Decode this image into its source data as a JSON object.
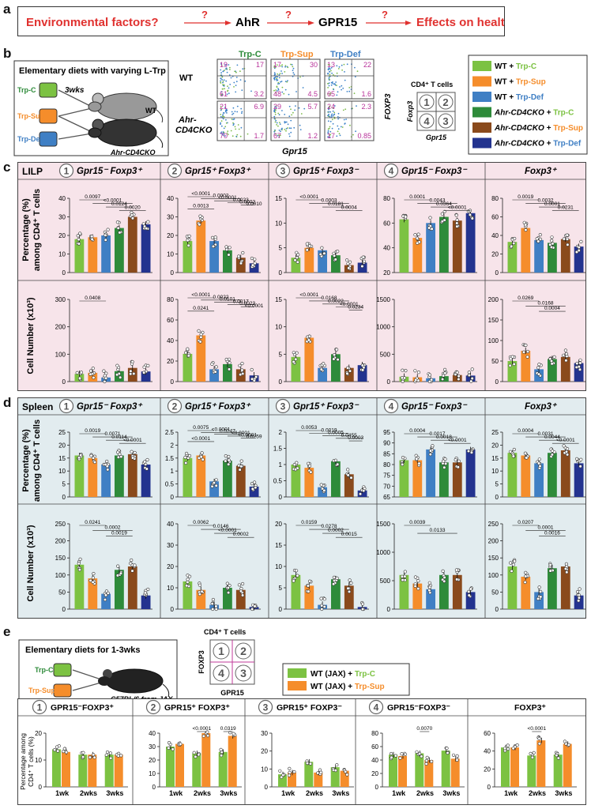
{
  "panels": {
    "a": "a",
    "b": "b",
    "c": "c",
    "d": "d",
    "e": "e"
  },
  "colors": {
    "trpC": "#7cc242",
    "trpSup": "#f58d2b",
    "trpDef": "#3f7fc4",
    "cko_C": "#2e8b3a",
    "cko_Sup": "#8a4a1c",
    "cko_Def": "#23338f",
    "red": "#e0312f",
    "pinkBg": "#f7e4ea",
    "blueBg": "#e2ecef"
  },
  "pathway": [
    "Environmental factors?",
    "AhR",
    "GPR15",
    "Effects on health?"
  ],
  "pathway_q": "?",
  "b": {
    "diet_title": "Elementary diets with varying L-Trp",
    "diets": [
      "Trp-C",
      "Trp-Sup",
      "Trp-Def"
    ],
    "duration": "3wks",
    "mice": [
      "WT",
      "Ahr-CD4CKO"
    ],
    "flow_cols": [
      "Trp-C",
      "Trp-Sup",
      "Trp-Def"
    ],
    "flow_rows": [
      "WT",
      "Ahr-CD4CKO"
    ],
    "flow_rows_l2": [
      "",
      "CD4CKO"
    ],
    "flow_rows_l1": [
      "WT",
      "Ahr-"
    ],
    "flow_numbers": [
      [
        [
          "19",
          "17",
          "61",
          "3.2"
        ],
        [
          "17",
          "30",
          "48",
          "4.5"
        ],
        [
          "13",
          "22",
          "65",
          "1.6"
        ]
      ],
      [
        [
          "21",
          "6.9",
          "70",
          "1.7"
        ],
        [
          "29",
          "5.7",
          "67",
          "1.2"
        ],
        [
          "24",
          "2.3",
          "17",
          "0.85"
        ]
      ]
    ],
    "flow_y": "FOXP3",
    "flow_x": "Gpr15",
    "quad_title": "CD4⁺ T cells",
    "quad_y": "Foxp3",
    "quad_x": "Gpr15",
    "quad_nums": [
      "1",
      "2",
      "4",
      "3"
    ],
    "legend": [
      {
        "a": "WT + ",
        "b": "Trp-C"
      },
      {
        "a": "WT + ",
        "b": "Trp-Sup"
      },
      {
        "a": "WT + ",
        "b": "Trp-Def"
      },
      {
        "a": "Ahr-CD4CKO + ",
        "b": "Trp-C"
      },
      {
        "a": "Ahr-CD4CKO + ",
        "b": "Trp-Sup"
      },
      {
        "a": "Ahr-CD4CKO + ",
        "b": "Trp-Def"
      }
    ]
  },
  "c": {
    "tissue": "LILP",
    "headers": [
      {
        "n": "1",
        "t": "Gpr15⁻ Foxp3⁺"
      },
      {
        "n": "2",
        "t": "Gpr15⁺ Foxp3⁺"
      },
      {
        "n": "3",
        "t": "Gpr15⁺ Foxp3⁻"
      },
      {
        "n": "4",
        "t": "Gpr15⁻ Foxp3⁻"
      },
      {
        "n": "",
        "t": "Foxp3⁺"
      }
    ],
    "ylab_pct": [
      "Percentage (%)",
      "among CD4⁺ T cells"
    ],
    "ylab_num": "Cell Number (x10³)"
  },
  "d": {
    "tissue": "Spleen",
    "headers": [
      {
        "n": "1",
        "t": "Gpr15⁻ Foxp3⁺"
      },
      {
        "n": "2",
        "t": "Gpr15⁺ Foxp3⁺"
      },
      {
        "n": "3",
        "t": "Gpr15⁺ Foxp3⁻"
      },
      {
        "n": "4",
        "t": "Gpr15⁻ Foxp3⁻"
      },
      {
        "n": "",
        "t": "Foxp3⁺"
      }
    ]
  },
  "e": {
    "diet_title": "Elementary diets for 1-3wks",
    "diets": [
      "Trp-C",
      "Trp-Sup"
    ],
    "mouse": "C57BL/6 from JAX",
    "quad_title": "CD4⁺ T cells",
    "quad_y": "FOXP3",
    "quad_x": "GPR15",
    "legend": [
      {
        "a": "WT (JAX) + ",
        "b": "Trp-C"
      },
      {
        "a": "WT (JAX) + ",
        "b": "Trp-Sup"
      }
    ],
    "headers": [
      {
        "n": "1",
        "t": "GPR15⁻FOXP3⁺"
      },
      {
        "n": "2",
        "t": "GPR15⁺ FOXP3⁺"
      },
      {
        "n": "3",
        "t": "GPR15⁺ FOXP3⁻"
      },
      {
        "n": "4",
        "t": "GPR15⁻FOXP3⁻"
      },
      {
        "n": "",
        "t": "FOXP3⁺"
      }
    ],
    "ylab": [
      "Percentage among",
      "CD4⁺ T cells (%)"
    ],
    "weeks": [
      "1wk",
      "2wks",
      "3wks"
    ]
  },
  "chart_data": [
    {
      "type": "bar",
      "panel": "c-pct-1",
      "yticks": [
        0,
        10,
        20,
        30,
        40
      ],
      "ylim": [
        0,
        40
      ],
      "values": [
        18,
        19,
        20,
        24,
        30,
        26
      ],
      "pvalues": [
        "0.0097",
        "<0.0001",
        "0.0124",
        "0.0020"
      ]
    },
    {
      "type": "bar",
      "panel": "c-pct-2",
      "yticks": [
        0,
        10,
        20,
        30,
        40
      ],
      "ylim": [
        0,
        40
      ],
      "values": [
        17,
        28,
        17,
        12,
        8,
        5
      ],
      "pvalues": [
        "<0.0001",
        "0.0002",
        "<0.0001",
        "0.0023",
        "0.0002",
        "0.0010",
        "0.0013"
      ]
    },
    {
      "type": "bar",
      "panel": "c-pct-3",
      "yticks": [
        0,
        5,
        10,
        15
      ],
      "ylim": [
        0,
        15
      ],
      "values": [
        3.0,
        5.0,
        4.5,
        3.5,
        1.5,
        2.0
      ],
      "pvalues": [
        "<0.0001",
        "0.0003",
        "0.0181",
        "0.0004"
      ]
    },
    {
      "type": "bar",
      "panel": "c-pct-4",
      "yticks": [
        20,
        40,
        60,
        80
      ],
      "ylim": [
        20,
        80
      ],
      "values": [
        63,
        48,
        60,
        65,
        62,
        68
      ],
      "pvalues": [
        "0.0001",
        "0.0043",
        "0.0364",
        "<0.0001"
      ]
    },
    {
      "type": "bar",
      "panel": "c-pct-5",
      "yticks": [
        0,
        20,
        40,
        60,
        80
      ],
      "ylim": [
        0,
        80
      ],
      "values": [
        33,
        48,
        35,
        32,
        36,
        28
      ],
      "pvalues": [
        "0.0019",
        "0.0032",
        "0.0001",
        "0.0231"
      ]
    },
    {
      "type": "bar",
      "panel": "c-num-1",
      "yticks": [
        0,
        100,
        200,
        300
      ],
      "ylim": [
        0,
        300
      ],
      "values": [
        28,
        32,
        15,
        38,
        50,
        37
      ],
      "pvalues": [
        "0.0408"
      ]
    },
    {
      "type": "bar",
      "panel": "c-num-2",
      "yticks": [
        0,
        20,
        40,
        60,
        80
      ],
      "ylim": [
        0,
        80
      ],
      "values": [
        27,
        45,
        12,
        17,
        12,
        6
      ],
      "pvalues": [
        "<0.0001",
        "0.0022",
        "0.0101",
        "0.0017",
        "0.0023",
        "<0.0001",
        "0.0241"
      ]
    },
    {
      "type": "bar",
      "panel": "c-num-3",
      "yticks": [
        0,
        5,
        10,
        15
      ],
      "ylim": [
        0,
        15
      ],
      "values": [
        4.5,
        8,
        2.5,
        5,
        2.5,
        3
      ],
      "pvalues": [
        "<0.0001",
        "0.0168",
        "0.0022",
        "<0.0001",
        "0.0234"
      ]
    },
    {
      "type": "bar",
      "panel": "c-num-4",
      "yticks": [
        0,
        500,
        1000,
        1500
      ],
      "ylim": [
        0,
        1500
      ],
      "values": [
        90,
        80,
        60,
        100,
        120,
        110
      ],
      "pvalues": []
    },
    {
      "type": "bar",
      "panel": "c-num-5",
      "yticks": [
        0,
        50,
        100,
        150,
        200
      ],
      "ylim": [
        0,
        200
      ],
      "values": [
        50,
        75,
        30,
        55,
        60,
        45
      ],
      "pvalues": [
        "0.0269",
        "0.0168",
        "0.0004"
      ]
    },
    {
      "type": "bar",
      "panel": "d-pct-1",
      "yticks": [
        0,
        5,
        10,
        15,
        20,
        25
      ],
      "ylim": [
        0,
        25
      ],
      "values": [
        16,
        15,
        12.5,
        16,
        16.5,
        12.5
      ],
      "pvalues": [
        "0.0019",
        "0.0071",
        "0.0114",
        "<0.0001"
      ]
    },
    {
      "type": "bar",
      "panel": "d-pct-2",
      "yticks": [
        0.0,
        0.5,
        1.0,
        1.5,
        2.0,
        2.5
      ],
      "ylim": [
        0,
        2.5
      ],
      "values": [
        1.5,
        1.6,
        0.6,
        1.4,
        1.2,
        0.4
      ],
      "pvalues": [
        "0.0075",
        "<0.0001",
        "0.0247",
        "<0.0001",
        "<0.0001",
        "0.0259",
        "<0.0001"
      ]
    },
    {
      "type": "bar",
      "panel": "d-pct-3",
      "yticks": [
        0.0,
        0.5,
        1.0,
        1.5,
        2.0
      ],
      "ylim": [
        0,
        2.0
      ],
      "values": [
        1.0,
        0.9,
        0.3,
        1.1,
        0.7,
        0.2
      ],
      "pvalues": [
        "0.0053",
        "0.0019",
        "0.0005",
        "0.0455",
        "0.0003"
      ]
    },
    {
      "type": "bar",
      "panel": "d-pct-4",
      "yticks": [
        65,
        70,
        75,
        80,
        85,
        90,
        95
      ],
      "ylim": [
        65,
        95
      ],
      "values": [
        82,
        82,
        87,
        81,
        81,
        87
      ],
      "pvalues": [
        "0.0004",
        "0.0017",
        "0.0018",
        "<0.0001"
      ]
    },
    {
      "type": "bar",
      "panel": "d-pct-5",
      "yticks": [
        0,
        5,
        10,
        15,
        20,
        25
      ],
      "ylim": [
        0,
        25
      ],
      "values": [
        17,
        16,
        13,
        17,
        18,
        13
      ],
      "pvalues": [
        "0.0004",
        "0.0031",
        "0.0044",
        "<0.0001"
      ]
    },
    {
      "type": "bar",
      "panel": "d-num-1",
      "yticks": [
        0,
        50,
        100,
        150,
        200,
        250
      ],
      "ylim": [
        0,
        250
      ],
      "values": [
        130,
        90,
        45,
        115,
        125,
        40
      ],
      "pvalues": [
        "0.0241",
        "0.0002",
        "0.0019"
      ]
    },
    {
      "type": "bar",
      "panel": "d-num-2",
      "yticks": [
        0,
        10,
        20,
        30,
        40
      ],
      "ylim": [
        0,
        40
      ],
      "values": [
        13,
        9,
        2,
        10,
        9,
        1
      ],
      "pvalues": [
        "0.0062",
        "0.0146",
        "<0.0001",
        "0.0002"
      ]
    },
    {
      "type": "bar",
      "panel": "d-num-3",
      "yticks": [
        0,
        5,
        10,
        15,
        20
      ],
      "ylim": [
        0,
        20
      ],
      "values": [
        8,
        5.5,
        1,
        7,
        5.5,
        0.5
      ],
      "pvalues": [
        "0.0159",
        "0.0278",
        "0.0002",
        "0.0015"
      ]
    },
    {
      "type": "bar",
      "panel": "d-num-4",
      "yticks": [
        0,
        500,
        1000,
        1500
      ],
      "ylim": [
        0,
        1500
      ],
      "values": [
        600,
        450,
        350,
        600,
        600,
        300
      ],
      "pvalues": [
        "0.0039",
        "0.0133"
      ]
    },
    {
      "type": "bar",
      "panel": "d-num-5",
      "yticks": [
        0,
        50,
        100,
        150,
        200,
        250
      ],
      "ylim": [
        0,
        250
      ],
      "values": [
        125,
        95,
        50,
        120,
        125,
        40
      ],
      "pvalues": [
        "0.0207",
        "0.0001",
        "0.0016"
      ]
    },
    {
      "type": "bar",
      "panel": "e-1",
      "categories": [
        "1wk",
        "2wks",
        "3wks"
      ],
      "yticks": [
        0,
        10,
        20
      ],
      "ylim": [
        0,
        20
      ],
      "series": [
        {
          "name": "Trp-C",
          "values": [
            14,
            12,
            12
          ]
        },
        {
          "name": "Trp-Sup",
          "values": [
            13,
            12,
            12
          ]
        }
      ],
      "pvalues": []
    },
    {
      "type": "bar",
      "panel": "e-2",
      "categories": [
        "1wk",
        "2wks",
        "3wks"
      ],
      "yticks": [
        0,
        10,
        20,
        30,
        40
      ],
      "ylim": [
        0,
        40
      ],
      "series": [
        {
          "name": "Trp-C",
          "values": [
            30,
            25,
            26
          ]
        },
        {
          "name": "Trp-Sup",
          "values": [
            32,
            40,
            38
          ]
        }
      ],
      "pvalues": [
        "<0.0001",
        "0.0319"
      ]
    },
    {
      "type": "bar",
      "panel": "e-3",
      "categories": [
        "1wk",
        "2wks",
        "3wks"
      ],
      "yticks": [
        0,
        10,
        20,
        30
      ],
      "ylim": [
        0,
        30
      ],
      "series": [
        {
          "name": "Trp-C",
          "values": [
            7,
            14,
            11
          ]
        },
        {
          "name": "Trp-Sup",
          "values": [
            8,
            8,
            9
          ]
        }
      ],
      "pvalues": []
    },
    {
      "type": "bar",
      "panel": "e-4",
      "categories": [
        "1wk",
        "2wks",
        "3wks"
      ],
      "yticks": [
        0,
        20,
        40,
        60,
        80
      ],
      "ylim": [
        0,
        80
      ],
      "series": [
        {
          "name": "Trp-C",
          "values": [
            48,
            50,
            54
          ]
        },
        {
          "name": "Trp-Sup",
          "values": [
            46,
            40,
            42
          ]
        }
      ],
      "pvalues": [
        "0.0070"
      ]
    },
    {
      "type": "bar",
      "panel": "e-5",
      "categories": [
        "1wk",
        "2wks",
        "3wks"
      ],
      "yticks": [
        0,
        20,
        40,
        60
      ],
      "ylim": [
        0,
        60
      ],
      "series": [
        {
          "name": "Trp-C",
          "values": [
            44,
            35,
            36
          ]
        },
        {
          "name": "Trp-Sup",
          "values": [
            44,
            52,
            48
          ]
        }
      ],
      "pvalues": [
        "<0.0001"
      ]
    }
  ]
}
